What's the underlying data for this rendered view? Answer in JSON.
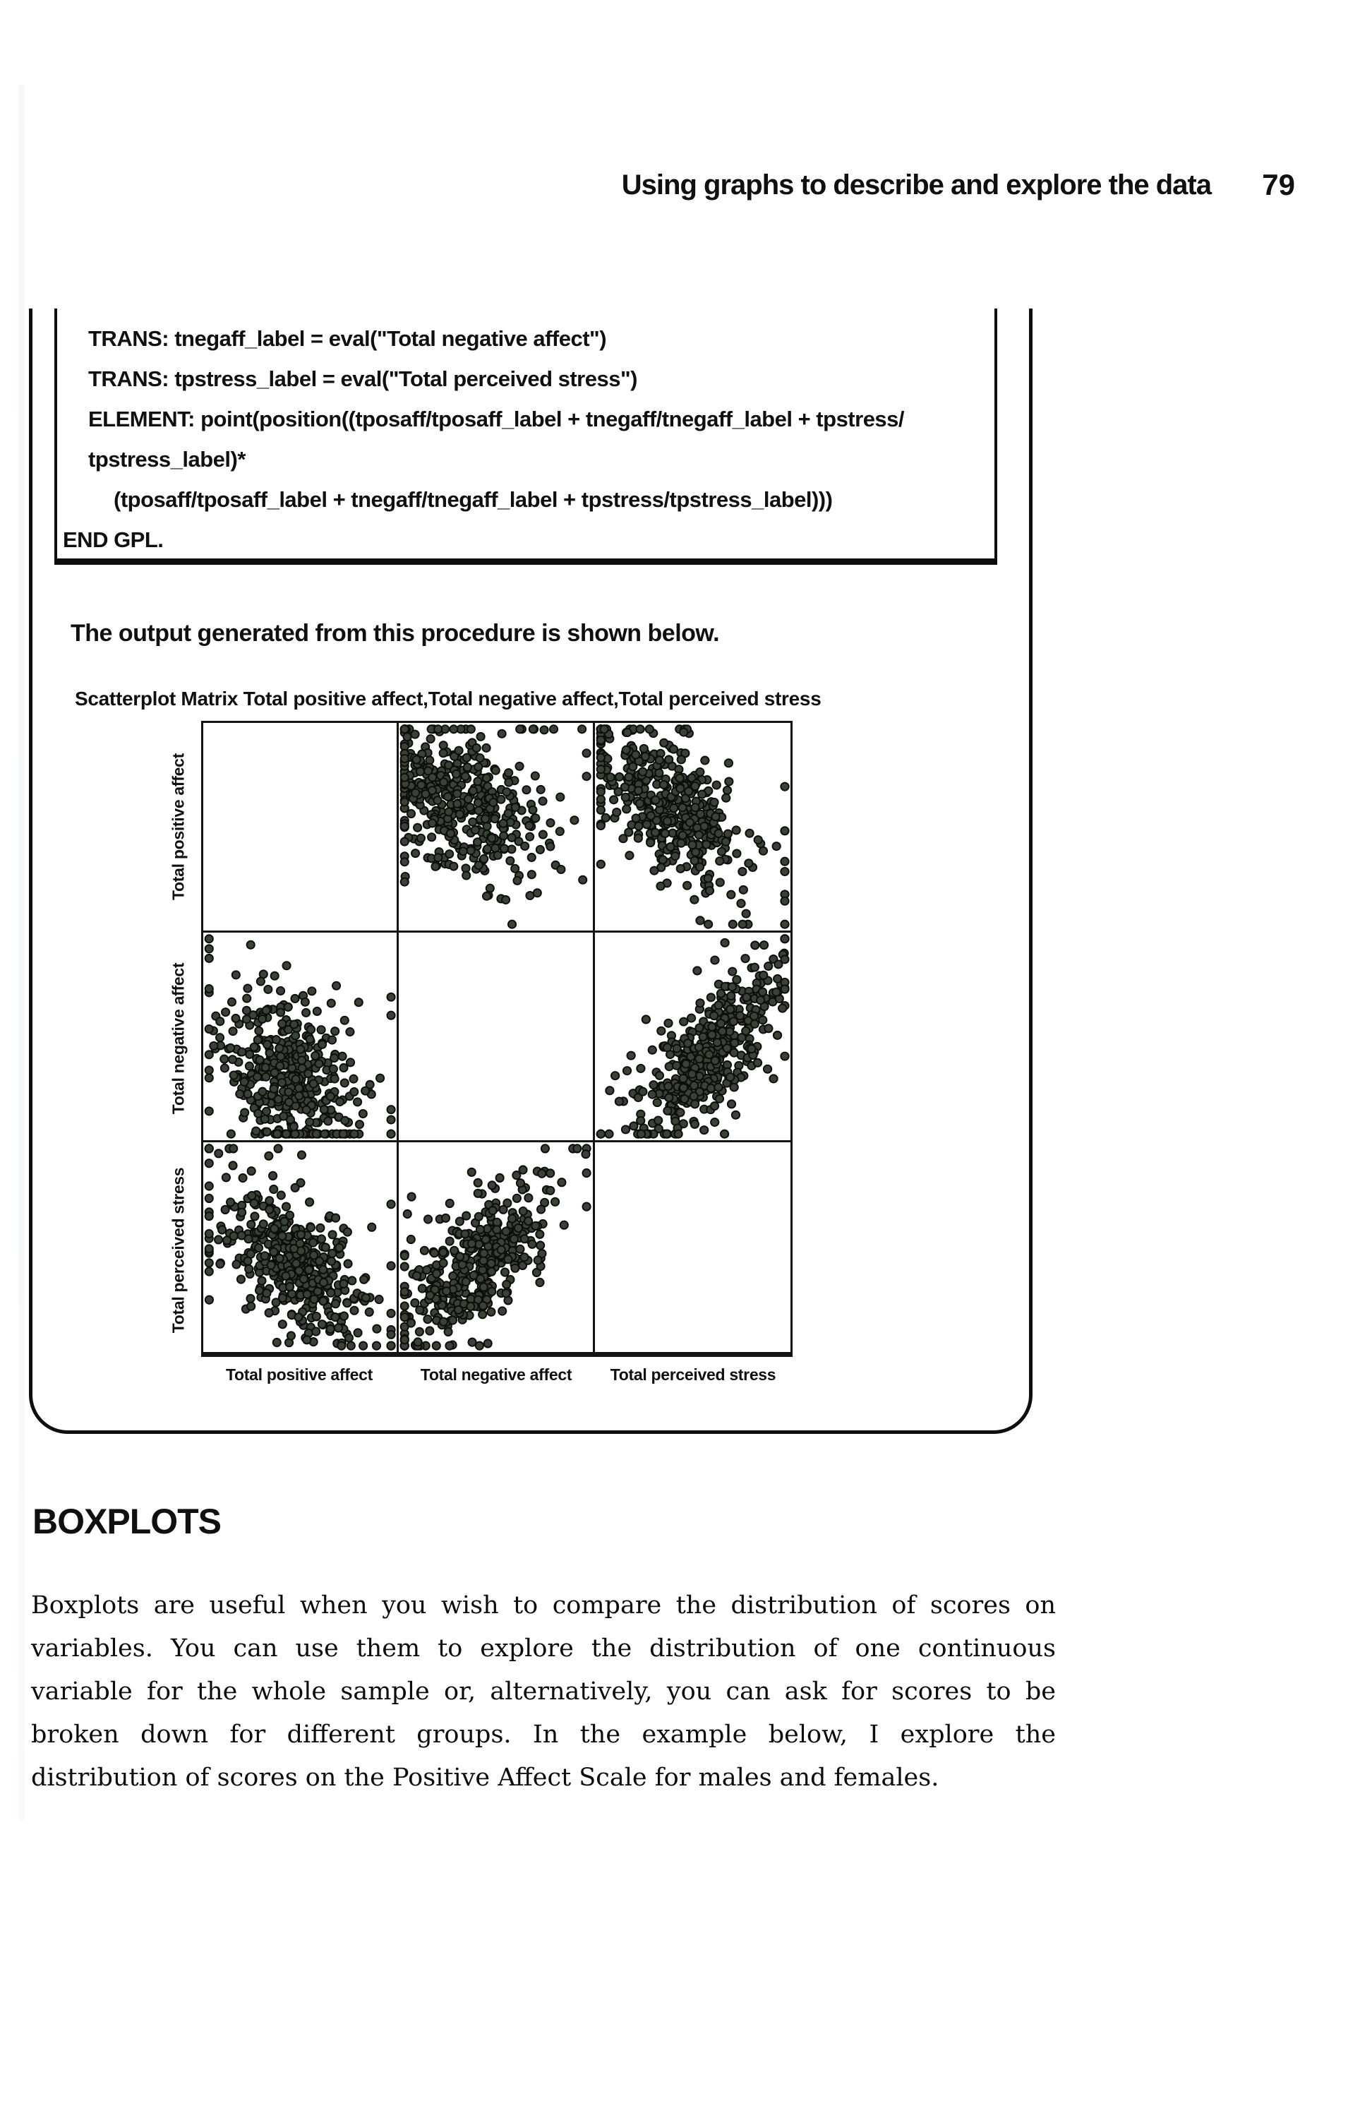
{
  "header": {
    "running_head": "Using graphs to describe and explore the data",
    "page_number": "79"
  },
  "code_box": {
    "lines": [
      {
        "indent": 1,
        "text": "TRANS: tnegaff_label = eval(\"Total negative affect\")"
      },
      {
        "indent": 1,
        "text": "TRANS: tpstress_label = eval(\"Total perceived stress\")"
      },
      {
        "indent": 1,
        "text": "ELEMENT: point(position((tposaff/tposaff_label + tnegaff/tnegaff_label + tpstress/"
      },
      {
        "indent": 1,
        "text": "tpstress_label)*"
      },
      {
        "indent": 2,
        "text": "(tposaff/tposaff_label + tnegaff/tnegaff_label + tpstress/tpstress_label)))"
      },
      {
        "indent": 0,
        "text": "END GPL."
      }
    ]
  },
  "intro": {
    "text": "The output generated from this procedure is shown below."
  },
  "chart_data": {
    "type": "scatter",
    "subtype": "scatterplot-matrix",
    "title": "Scatterplot Matrix Total positive affect,Total negative affect,Total perceived stress",
    "variables": [
      "Total positive affect",
      "Total negative affect",
      "Total perceived stress"
    ],
    "grid_size": 3,
    "diagonal": "empty",
    "axes": "no tick marks or tick labels shown",
    "legend": "none",
    "y_axis_labels": [
      "Total positive affect",
      "Total negative affect",
      "Total perceived stress"
    ],
    "x_axis_labels": [
      "Total positive affect",
      "Total negative affect",
      "Total perceived stress"
    ],
    "point_style": {
      "radius": 5.6,
      "fill": "#3a4137",
      "stroke": "#0d0f0c"
    },
    "panels": [
      {
        "row": 0,
        "col": 1,
        "x_var": "Total negative affect",
        "y_var": "Total positive affect",
        "trend": "negative",
        "n": 430,
        "mean_x": 0.3,
        "mean_y": 0.63,
        "sd_x": 0.19,
        "sd_y": 0.17,
        "rho": -0.35,
        "seed": 11
      },
      {
        "row": 0,
        "col": 2,
        "x_var": "Total perceived stress",
        "y_var": "Total positive affect",
        "trend": "negative",
        "n": 430,
        "mean_x": 0.38,
        "mean_y": 0.6,
        "sd_x": 0.19,
        "sd_y": 0.17,
        "rho": -0.55,
        "seed": 22
      },
      {
        "row": 1,
        "col": 0,
        "x_var": "Total positive affect",
        "y_var": "Total negative affect",
        "trend": "negative",
        "n": 430,
        "mean_x": 0.44,
        "mean_y": 0.3,
        "sd_x": 0.17,
        "sd_y": 0.19,
        "rho": -0.38,
        "seed": 33
      },
      {
        "row": 1,
        "col": 2,
        "x_var": "Total perceived stress",
        "y_var": "Total negative affect",
        "trend": "positive",
        "n": 430,
        "mean_x": 0.58,
        "mean_y": 0.4,
        "sd_x": 0.18,
        "sd_y": 0.2,
        "rho": 0.78,
        "seed": 44
      },
      {
        "row": 2,
        "col": 0,
        "x_var": "Total positive affect",
        "y_var": "Total perceived stress",
        "trend": "negative",
        "n": 430,
        "mean_x": 0.46,
        "mean_y": 0.42,
        "sd_x": 0.18,
        "sd_y": 0.17,
        "rho": -0.55,
        "seed": 55
      },
      {
        "row": 2,
        "col": 1,
        "x_var": "Total negative affect",
        "y_var": "Total perceived stress",
        "trend": "positive",
        "n": 430,
        "mean_x": 0.4,
        "mean_y": 0.42,
        "sd_x": 0.18,
        "sd_y": 0.18,
        "rho": 0.68,
        "seed": 66
      }
    ]
  },
  "section": {
    "heading": "BOXPLOTS",
    "paragraph": "Boxplots are useful when you wish to compare the distribution of scores on variables. You can use them to explore the distribution of one continuous variable for the whole sample or, alternatively, you can ask for scores to be broken down for different groups. In the example below, I explore the distribution of scores on the Positive Affect Scale for males and females."
  }
}
